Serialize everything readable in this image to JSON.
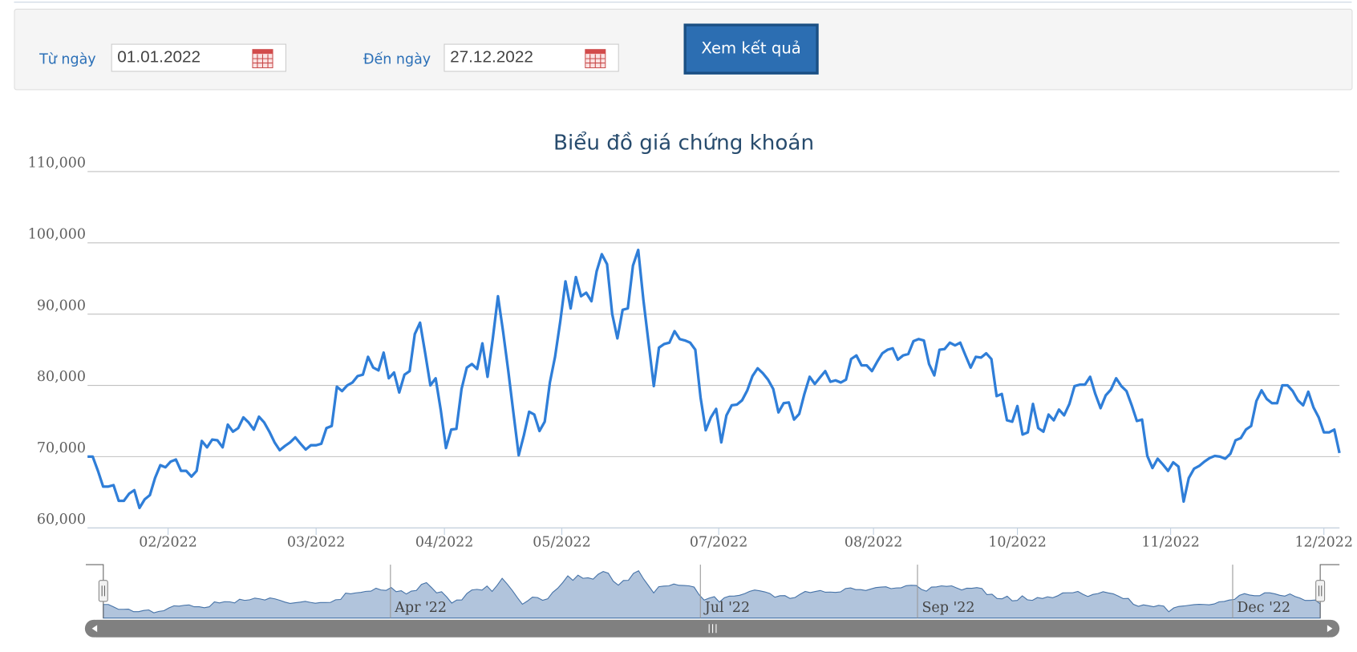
{
  "form": {
    "from_label": "Từ ngày",
    "from_value": "01.01.2022",
    "to_label": "Đến ngày",
    "to_value": "27.12.2022",
    "button": "Xem kết quả"
  },
  "chart_data": {
    "type": "line",
    "title": "Biểu đồ giá chứng khoán",
    "color": "#2f7ed8",
    "values": [
      70000,
      70000,
      68000,
      65800,
      65800,
      66000,
      63800,
      63800,
      64800,
      65300,
      62800,
      64000,
      64600,
      67000,
      68800,
      68500,
      69300,
      69600,
      68000,
      68000,
      67200,
      68000,
      72200,
      71300,
      72400,
      72300,
      71300,
      74500,
      73500,
      74000,
      75500,
      74800,
      73800,
      75600,
      74800,
      73500,
      72000,
      70900,
      71500,
      72000,
      72700,
      71800,
      71000,
      71600,
      71600,
      71800,
      74000,
      74300,
      79800,
      79200,
      80000,
      80400,
      81300,
      81500,
      84000,
      82500,
      82100,
      84600,
      81000,
      81800,
      79000,
      81500,
      82000,
      87200,
      88800,
      84500,
      80000,
      81000,
      76500,
      71200,
      73800,
      73900,
      79500,
      82500,
      83000,
      82300,
      85900,
      81200,
      86500,
      92500,
      87500,
      82000,
      76000,
      70200,
      73000,
      76300,
      75900,
      73600,
      74900,
      80400,
      84000,
      89000,
      94600,
      90800,
      95200,
      92500,
      93000,
      91800,
      96000,
      98400,
      97000,
      90000,
      86600,
      90600,
      90800,
      96800,
      99000,
      92000,
      86000,
      79900,
      85300,
      85800,
      86000,
      87600,
      86500,
      86300,
      86000,
      85000,
      78300,
      73700,
      75500,
      76700,
      72000,
      75800,
      77200,
      77300,
      77900,
      79300,
      81300,
      82400,
      81700,
      80800,
      79500,
      76200,
      77500,
      77600,
      75200,
      76000,
      78800,
      81200,
      80200,
      81100,
      82000,
      80500,
      80700,
      80400,
      80800,
      83700,
      84200,
      82800,
      82800,
      82000,
      83300,
      84500,
      85000,
      85200,
      83600,
      84200,
      84400,
      86200,
      86500,
      86300,
      83000,
      81400,
      85000,
      85100,
      86000,
      85600,
      86000,
      84200,
      82500,
      84000,
      83900,
      84500,
      83700,
      78500,
      78800,
      75100,
      74900,
      77100,
      73100,
      73400,
      77400,
      74000,
      73500,
      75900,
      75100,
      76600,
      75800,
      77400,
      79900,
      80100,
      80100,
      81200,
      78800,
      76800,
      78600,
      79400,
      81000,
      79900,
      79200,
      77200,
      75000,
      75200,
      70100,
      68400,
      69700,
      68900,
      68000,
      69200,
      68600,
      63700,
      67000,
      68300,
      68700,
      69300,
      69800,
      70100,
      70000,
      69700,
      70400,
      72300,
      72600,
      73800,
      74300,
      77800,
      79300,
      78100,
      77500,
      77500,
      80000,
      80000,
      79200,
      77900,
      77200,
      79100,
      76900,
      75500,
      73400,
      73400,
      73800,
      70500
    ],
    "xlim": [
      0,
      241
    ],
    "xticks": [
      {
        "value": 15.5,
        "label": "02/2022"
      },
      {
        "value": 44,
        "label": "03/2022"
      },
      {
        "value": 68.7,
        "label": "04/2022"
      },
      {
        "value": 91.3,
        "label": "05/2022"
      },
      {
        "value": 121.5,
        "label": "07/2022"
      },
      {
        "value": 151.3,
        "label": "08/2022"
      },
      {
        "value": 179,
        "label": "10/2022"
      },
      {
        "value": 208.5,
        "label": "11/2022"
      },
      {
        "value": 238,
        "label": "12/2022"
      }
    ],
    "ylim": [
      60000,
      110000
    ],
    "yticks": [
      {
        "value": 60000,
        "label": "60,000"
      },
      {
        "value": 70000,
        "label": "70,000"
      },
      {
        "value": 80000,
        "label": "80,000"
      },
      {
        "value": 90000,
        "label": "90,000"
      },
      {
        "value": 100000,
        "label": "100,000"
      },
      {
        "value": 110000,
        "label": "110,000"
      }
    ],
    "grid": true,
    "navigator_labels": [
      "Apr '22",
      "Jul '22",
      "Sep '22",
      "Dec '22"
    ]
  }
}
